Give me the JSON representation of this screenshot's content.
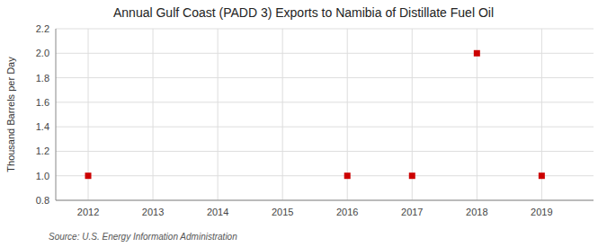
{
  "chart_data": {
    "type": "scatter",
    "title": "Annual Gulf Coast (PADD 3) Exports to Namibia of Distillate Fuel Oil",
    "ylabel": "Thousand Barrels per Day",
    "source": "Source: U.S. Energy Information Administration",
    "x": [
      2012,
      2016,
      2017,
      2018,
      2019
    ],
    "values": [
      1.0,
      1.0,
      1.0,
      2.0,
      1.0
    ],
    "color": "#cc0000",
    "marker": "square",
    "xlim": [
      2011.5,
      2019.8
    ],
    "ylim": [
      0.8,
      2.2
    ],
    "xticks": [
      2012,
      2013,
      2014,
      2015,
      2016,
      2017,
      2018,
      2019
    ],
    "yticks": [
      0.8,
      {
        "value": 1.0,
        "label": "1.0"
      },
      1.2,
      1.4,
      1.6,
      1.8,
      {
        "value": 2.0,
        "label": "2.0"
      },
      2.2
    ],
    "grid": true
  }
}
